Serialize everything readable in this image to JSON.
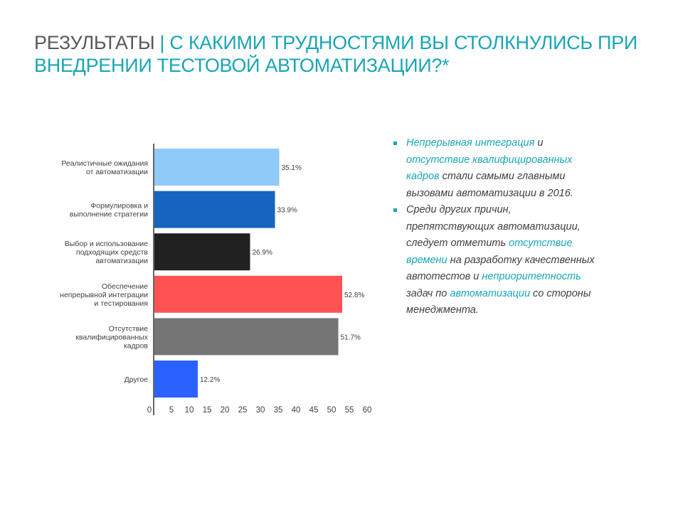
{
  "slide": {
    "title_lead": "РЕЗУЛЬТАТЫ",
    "title_rest": "| С КАКИМИ ТРУДНОСТЯМИ ВЫ СТОЛКНУЛИСЬ ПРИ ВНЕДРЕНИИ ТЕСТОВОЙ АВТОМАТИЗАЦИИ?*"
  },
  "colors": {
    "accent": "#1aa5b5",
    "title_gray": "#595959",
    "bars": [
      "#90caf9",
      "#1565c0",
      "#212121",
      "#ff5252",
      "#757575",
      "#2962ff"
    ]
  },
  "chart_data": {
    "type": "bar",
    "orientation": "horizontal",
    "categories": [
      [
        "Реалистичные ожидания",
        "от автоматизации"
      ],
      [
        "Формулировка и",
        "выполнение стратегии"
      ],
      [
        "Выбор и использование",
        "подходящих средств",
        "автоматизации"
      ],
      [
        "Обеспечение",
        "непрерывной интеграции",
        "и тестирования"
      ],
      [
        "Отсутствие",
        "квалифицированных",
        "кадров"
      ],
      [
        "Другое"
      ]
    ],
    "values": [
      35.1,
      33.9,
      26.9,
      52.8,
      51.7,
      12.2
    ],
    "value_labels": [
      "35.1%",
      "33.9%",
      "26.9%",
      "52.8%",
      "51.7%",
      "12.2%"
    ],
    "x_ticks": [
      "0",
      "5",
      "10",
      "15",
      "20",
      "25",
      "30",
      "35",
      "40",
      "45",
      "50",
      "55",
      "60"
    ],
    "xlim": [
      0,
      60
    ],
    "grid": false,
    "legend": "none"
  },
  "notes": [
    {
      "parts": [
        {
          "text": "Непрерывная интеграция",
          "hl": true
        },
        {
          "text": " и ",
          "hl": false
        },
        {
          "text": "отсутствие квалифицированных кадров",
          "hl": true
        },
        {
          "text": " стали самыми главными вызовами автоматизации в 2016.",
          "hl": false
        }
      ]
    },
    {
      "parts": [
        {
          "text": "Среди других причин, препятствующих автоматизации, следует отметить ",
          "hl": false
        },
        {
          "text": "отсутствие времени",
          "hl": true
        },
        {
          "text": " на разработку качественных автотестов и ",
          "hl": false
        },
        {
          "text": "неприоритетность",
          "hl": true
        },
        {
          "text": " задач по ",
          "hl": false
        },
        {
          "text": "автоматизации",
          "hl": true
        },
        {
          "text": " со стороны менеджмента.",
          "hl": false
        }
      ]
    }
  ]
}
